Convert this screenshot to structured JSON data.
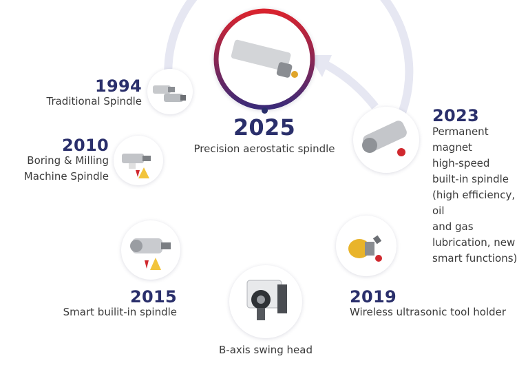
{
  "colors": {
    "ring": "#e6e7f2",
    "year": "#2a2f6b",
    "text": "#3a3a3a",
    "ring_2025_start": "#d9232e",
    "ring_2025_end": "#3b2a78"
  },
  "milestones": [
    {
      "id": "m1994",
      "year": "1994",
      "desc": "Traditional Spindle"
    },
    {
      "id": "m2010",
      "year": "2010",
      "desc": "Boring & Milling\nMachine Spindle"
    },
    {
      "id": "m2015",
      "year": "2015",
      "desc": "Smart builit-in spindle"
    },
    {
      "id": "mbaxis",
      "year": "",
      "desc": "B-axis swing head"
    },
    {
      "id": "m2019",
      "year": "2019",
      "desc": "Wireless ultrasonic tool holder"
    },
    {
      "id": "m2023",
      "year": "2023",
      "desc": "Permanent\nmagnet\nhigh-speed\nbuilt-in spindle\n(high efficiency, oil\nand gas\nlubrication, new\nsmart functions)"
    },
    {
      "id": "m2025",
      "year": "2025",
      "desc": "Precision aerostatic spindle"
    }
  ]
}
